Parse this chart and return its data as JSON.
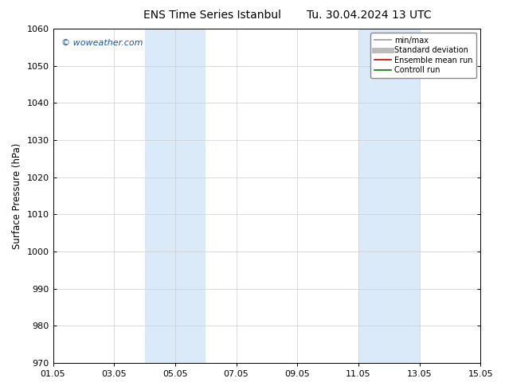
{
  "title_left": "ENS Time Series Istanbul",
  "title_right": "Tu. 30.04.2024 13 UTC",
  "ylabel": "Surface Pressure (hPa)",
  "ylim": [
    970,
    1060
  ],
  "yticks": [
    970,
    980,
    990,
    1000,
    1010,
    1020,
    1030,
    1040,
    1050,
    1060
  ],
  "xtick_labels": [
    "01.05",
    "03.05",
    "05.05",
    "07.05",
    "09.05",
    "11.05",
    "13.05",
    "15.05"
  ],
  "xtick_positions": [
    0,
    2,
    4,
    6,
    8,
    10,
    12,
    14
  ],
  "xlim": [
    0,
    14
  ],
  "shaded_regions": [
    {
      "x_start": 3,
      "x_end": 5,
      "color": "#daeaf8"
    },
    {
      "x_start": 10,
      "x_end": 12,
      "color": "#daeaf8"
    }
  ],
  "watermark_text": "© woweather.com",
  "watermark_color": "#1155aa",
  "background_color": "#ffffff",
  "plot_bg_color": "#ffffff",
  "legend_items": [
    {
      "label": "min/max",
      "color": "#999999",
      "lw": 1.2,
      "style": "solid"
    },
    {
      "label": "Standard deviation",
      "color": "#bbbbbb",
      "lw": 5,
      "style": "solid"
    },
    {
      "label": "Ensemble mean run",
      "color": "#cc0000",
      "lw": 1.2,
      "style": "solid"
    },
    {
      "label": "Controll run",
      "color": "#007700",
      "lw": 1.2,
      "style": "solid"
    }
  ],
  "grid_color": "#cccccc",
  "tick_label_fontsize": 8,
  "axis_label_fontsize": 8.5,
  "title_fontsize": 10
}
